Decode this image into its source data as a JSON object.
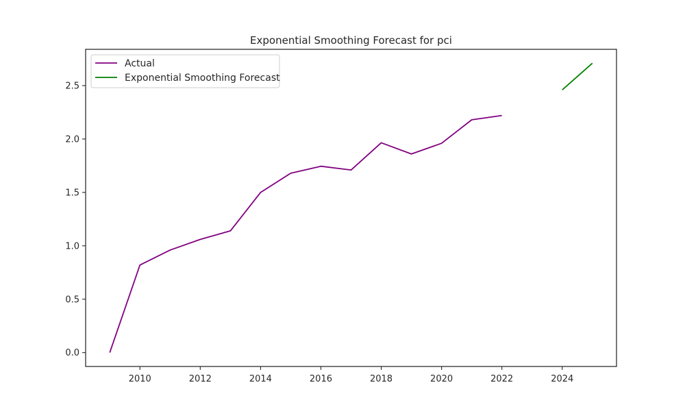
{
  "chart_data": {
    "type": "line",
    "title": "Exponential Smoothing Forecast for pci",
    "xlabel": "",
    "ylabel": "",
    "xlim": [
      2008.2,
      2025.8
    ],
    "ylim": [
      -0.13,
      2.84
    ],
    "x_ticks": [
      2010,
      2012,
      2014,
      2016,
      2018,
      2020,
      2022,
      2024
    ],
    "x_tick_labels": [
      "2010",
      "2012",
      "2014",
      "2016",
      "2018",
      "2020",
      "2022",
      "2024"
    ],
    "y_ticks": [
      0.0,
      0.5,
      1.0,
      1.5,
      2.0,
      2.5
    ],
    "y_tick_labels": [
      "0.0",
      "0.5",
      "1.0",
      "1.5",
      "2.0",
      "2.5"
    ],
    "grid": false,
    "legend_position": "top-left",
    "series": [
      {
        "name": "Actual",
        "color": "#800080",
        "x": [
          2009,
          2010,
          2011,
          2012,
          2013,
          2014,
          2015,
          2016,
          2017,
          2018,
          2019,
          2020,
          2021,
          2022
        ],
        "y": [
          0.0,
          0.82,
          0.96,
          1.06,
          1.14,
          1.5,
          1.68,
          1.745,
          1.71,
          1.965,
          1.86,
          1.96,
          2.18,
          2.22
        ]
      },
      {
        "name": "Exponential Smoothing Forecast",
        "color": "#008000",
        "x": [
          2024,
          2025
        ],
        "y": [
          2.46,
          2.71
        ]
      }
    ]
  }
}
